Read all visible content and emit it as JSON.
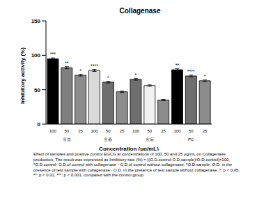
{
  "chart_data": {
    "type": "bar",
    "title": "Collagenase",
    "y_label": "Inhibitory activity (%)",
    "x_label": "Concentration (μg/mL)",
    "categories": [
      "100",
      "50",
      "25",
      "100",
      "50",
      "25",
      "100",
      "50",
      "25",
      "100",
      "50",
      "25"
    ],
    "group_labels": [
      "효모",
      "효종",
      "효동",
      "PC"
    ],
    "values": [
      95,
      82,
      71,
      78,
      61,
      47,
      65,
      56,
      35,
      79,
      70,
      63
    ],
    "errors": [
      1.2,
      1.5,
      1.2,
      1.5,
      1.2,
      1.0,
      1.2,
      1.0,
      1.0,
      1.5,
      1.2,
      1.2
    ],
    "annotations": [
      "***",
      "**",
      "*",
      "****",
      "*",
      null,
      "*",
      null,
      null,
      "**",
      "****",
      "*"
    ],
    "colors": [
      "#000000",
      "#7f7f7f",
      "#8c8c8c",
      "#d9d9d9",
      "#6e6e6e",
      "#8c8c8c",
      "#6e6e6e",
      "#f2f2f2",
      "#8c8c8c",
      "#000000",
      "#6e6e6e",
      "#8c8c8c"
    ],
    "ylim": [
      0,
      150
    ],
    "yticks": [
      0,
      50,
      100,
      150
    ],
    "grid": false,
    "caption": "Effect of samples and positive control EGCG at concentrations of 100, 50 and 25 μg/mL on Collagenase production. The result was expressed as Inhibitory rate (%) = [(O.D.control-O.D.sample)/O.D.control]×100. *O.D.control: O.D.of control with collagenase - O.D.of control without collagenase. *O.D.sample: O.D. in the presence of test sample with collagenase - O.D. in the presence of test sample without collagenase.  *: p < 0.05, **: p < 0.01, ***: p < 0.001, compared with the control group."
  }
}
